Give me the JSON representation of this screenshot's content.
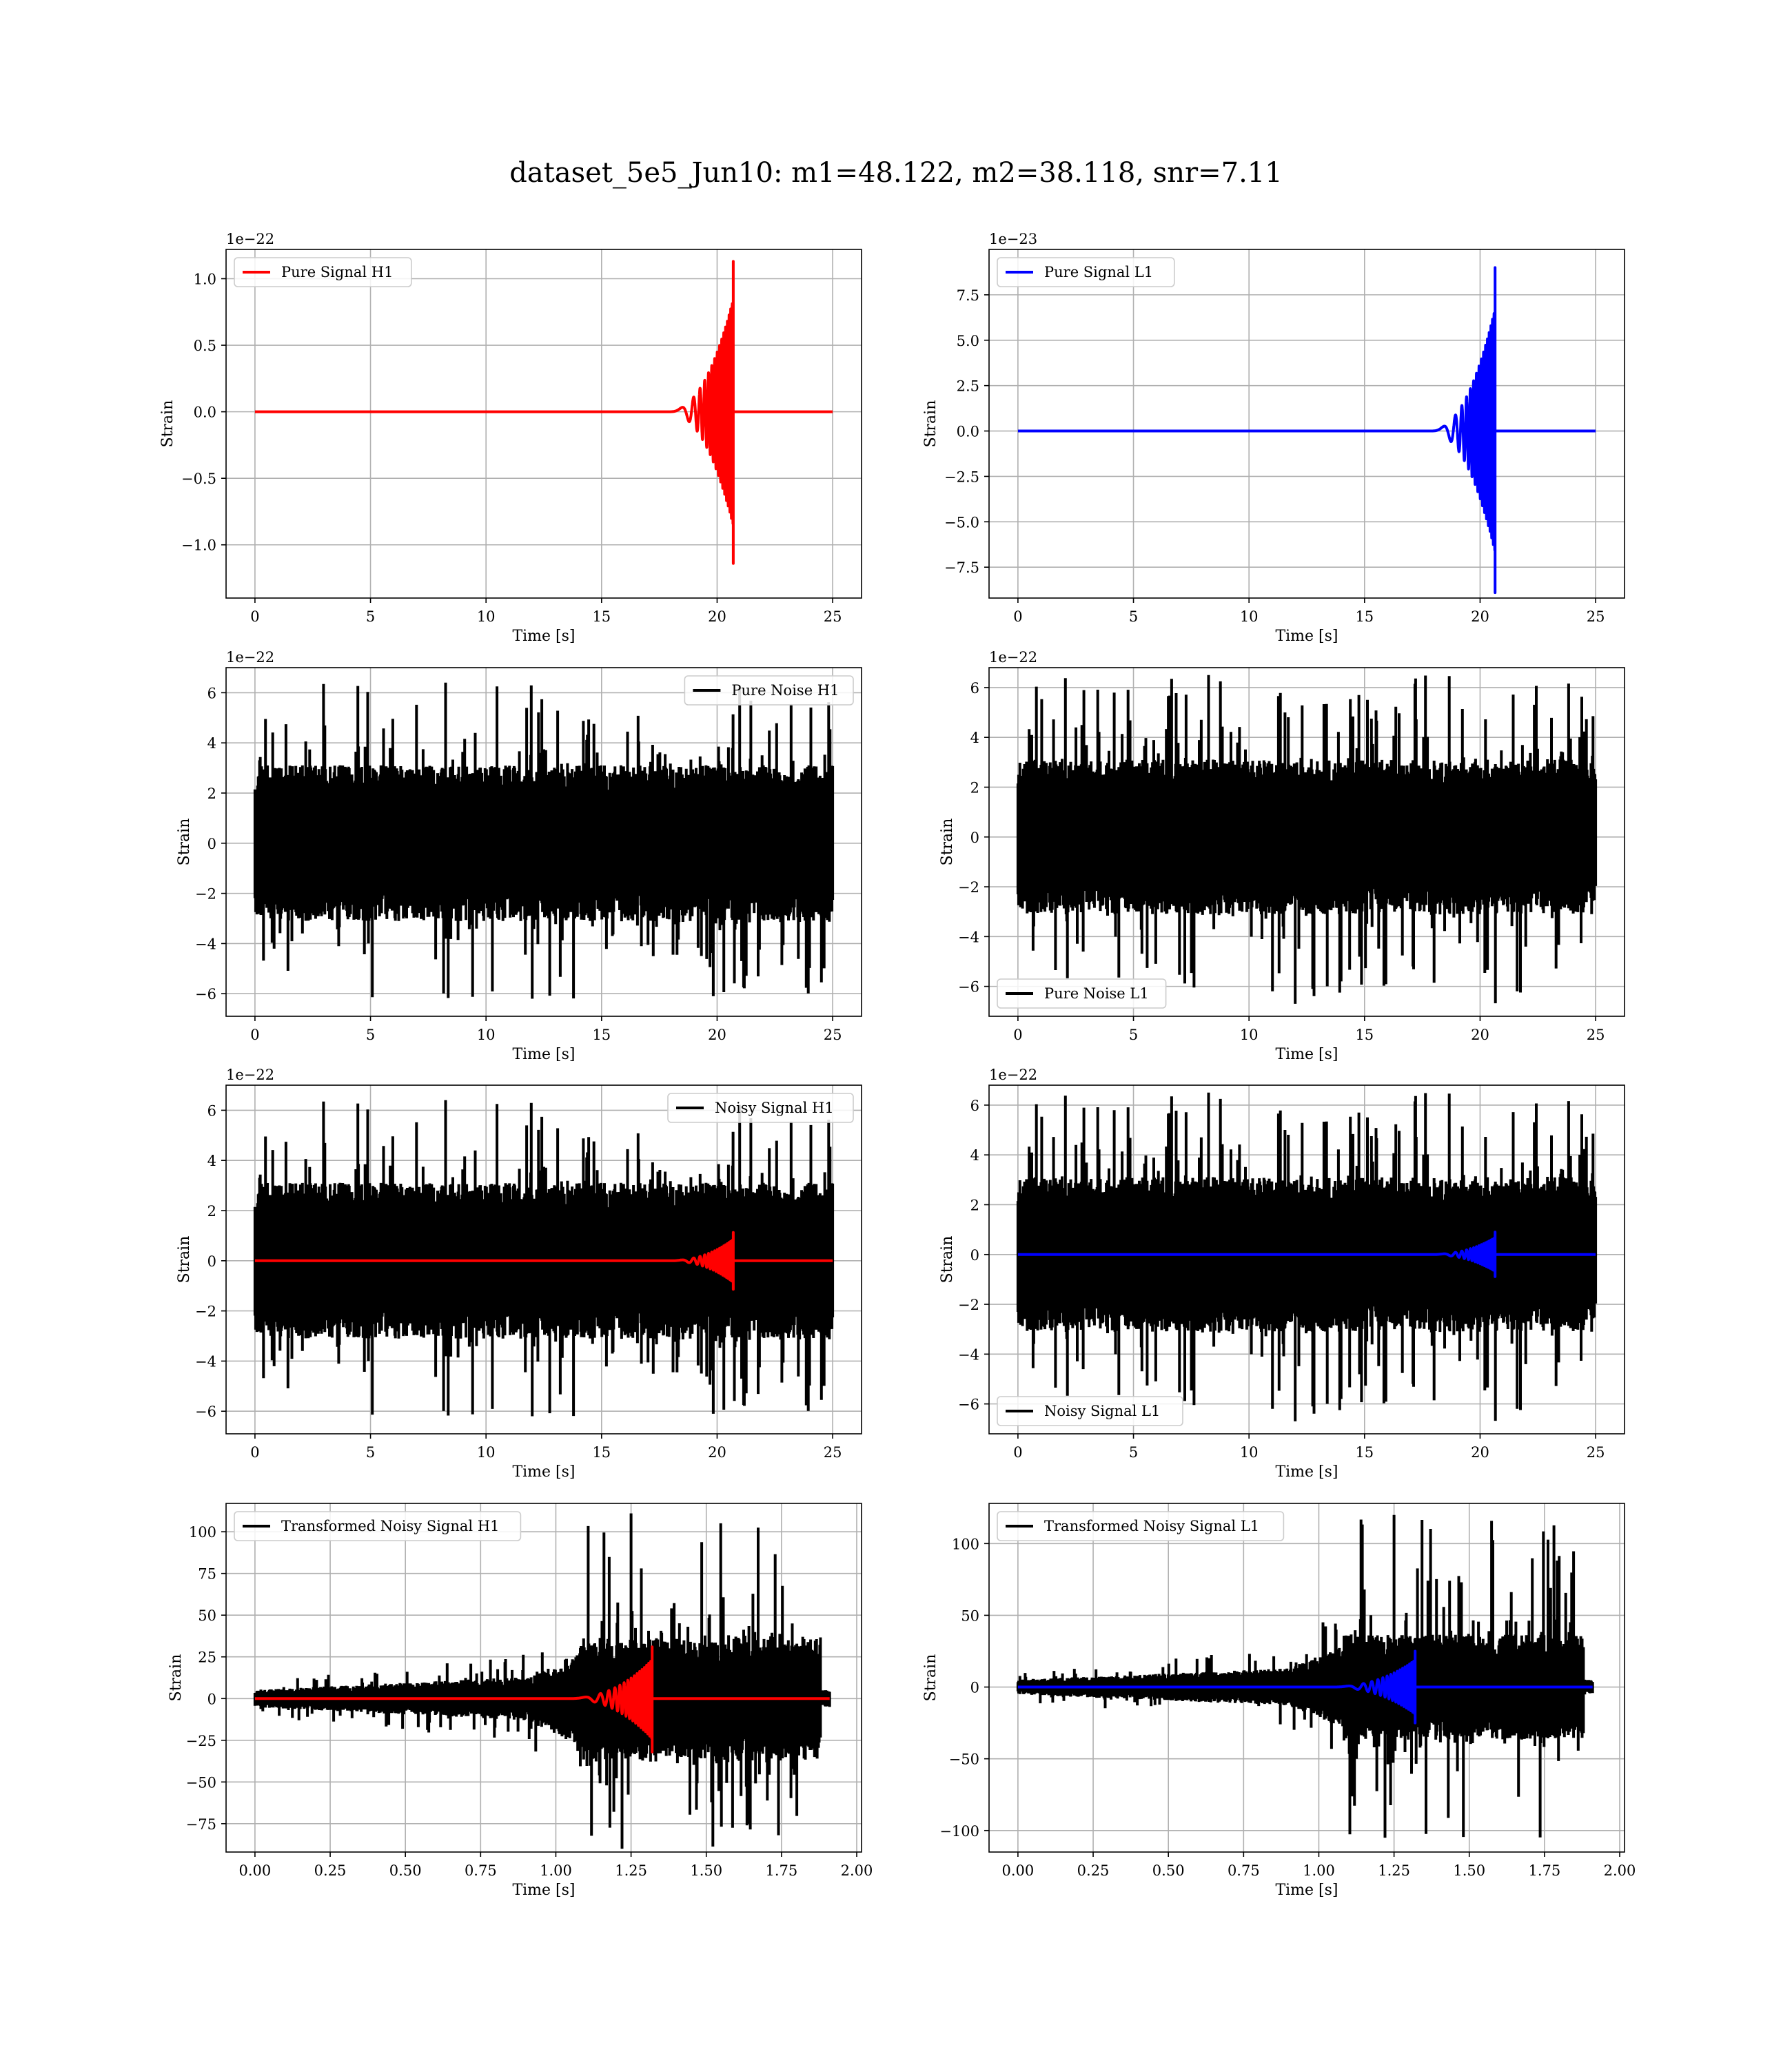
{
  "title": "dataset_5e5_Jun10: m1=48.122, m2=38.118, snr=7.11",
  "colors": {
    "h1_signal": "#ff0000",
    "l1_signal": "#0000ff",
    "noise": "#000000",
    "grid": "#b0b0b0"
  },
  "chart_data": [
    {
      "id": "pure-signal-h1",
      "type": "line",
      "xlabel": "Time [s]",
      "ylabel": "Strain",
      "offset_text": "1e−22",
      "xlim": [
        -1.25,
        26.25
      ],
      "ylim": [
        -1.4,
        1.22
      ],
      "xticks": [
        0,
        5,
        10,
        15,
        20,
        25
      ],
      "xtick_labels": [
        "0",
        "5",
        "10",
        "15",
        "20",
        "25"
      ],
      "yticks": [
        -1.0,
        -0.5,
        0.0,
        0.5,
        1.0
      ],
      "ytick_labels": [
        "−1.0",
        "−0.5",
        "0.0",
        "0.5",
        "1.0"
      ],
      "legend": {
        "label": "Pure Signal H1",
        "color": "#ff0000",
        "position": "upper left"
      },
      "series": [
        {
          "name": "Pure Signal H1",
          "color": "#ff0000",
          "kind": "chirp",
          "x_start": 0,
          "x_end": 25,
          "merger": 20.7,
          "peak": 1.13,
          "trough": -1.14,
          "duration": 3.0,
          "post_amp": 0.0
        }
      ]
    },
    {
      "id": "pure-signal-l1",
      "type": "line",
      "xlabel": "Time [s]",
      "ylabel": "Strain",
      "offset_text": "1e−23",
      "xlim": [
        -1.25,
        26.25
      ],
      "ylim": [
        -9.2,
        10.0
      ],
      "xticks": [
        0,
        5,
        10,
        15,
        20,
        25
      ],
      "xtick_labels": [
        "0",
        "5",
        "10",
        "15",
        "20",
        "25"
      ],
      "yticks": [
        -7.5,
        -5.0,
        -2.5,
        0.0,
        2.5,
        5.0,
        7.5
      ],
      "ytick_labels": [
        "−7.5",
        "−5.0",
        "−2.5",
        "0.0",
        "2.5",
        "5.0",
        "7.5"
      ],
      "legend": {
        "label": "Pure Signal L1",
        "color": "#0000ff",
        "position": "upper left"
      },
      "series": [
        {
          "name": "Pure Signal L1",
          "color": "#0000ff",
          "kind": "chirp",
          "x_start": 0,
          "x_end": 25,
          "merger": 20.65,
          "peak": 9.0,
          "trough": -8.9,
          "duration": 3.0,
          "post_amp": 0.0
        }
      ]
    },
    {
      "id": "pure-noise-h1",
      "type": "line",
      "xlabel": "Time [s]",
      "ylabel": "Strain",
      "offset_text": "1e−22",
      "xlim": [
        -1.25,
        26.25
      ],
      "ylim": [
        -6.9,
        7.0
      ],
      "xticks": [
        0,
        5,
        10,
        15,
        20,
        25
      ],
      "xtick_labels": [
        "0",
        "5",
        "10",
        "15",
        "20",
        "25"
      ],
      "yticks": [
        -6,
        -4,
        -2,
        0,
        2,
        4,
        6
      ],
      "ytick_labels": [
        "−6",
        "−4",
        "−2",
        "0",
        "2",
        "4",
        "6"
      ],
      "legend": {
        "label": "Pure Noise H1",
        "color": "#000000",
        "position": "upper right"
      },
      "series": [
        {
          "name": "Pure Noise H1",
          "color": "#000000",
          "kind": "noise",
          "x_start": 0,
          "x_end": 25,
          "core": 2.3,
          "max": 6.4,
          "min": -6.2,
          "seed": 11
        }
      ]
    },
    {
      "id": "pure-noise-l1",
      "type": "line",
      "xlabel": "Time [s]",
      "ylabel": "Strain",
      "offset_text": "1e−22",
      "xlim": [
        -1.25,
        26.25
      ],
      "ylim": [
        -7.2,
        6.8
      ],
      "xticks": [
        0,
        5,
        10,
        15,
        20,
        25
      ],
      "xtick_labels": [
        "0",
        "5",
        "10",
        "15",
        "20",
        "25"
      ],
      "yticks": [
        -6,
        -4,
        -2,
        0,
        2,
        4,
        6
      ],
      "ytick_labels": [
        "−6",
        "−4",
        "−2",
        "0",
        "2",
        "4",
        "6"
      ],
      "legend": {
        "label": "Pure Noise L1",
        "color": "#000000",
        "position": "lower left"
      },
      "series": [
        {
          "name": "Pure Noise L1",
          "color": "#000000",
          "kind": "noise",
          "x_start": 0,
          "x_end": 25,
          "core": 2.3,
          "max": 6.5,
          "min": -6.7,
          "seed": 23
        }
      ]
    },
    {
      "id": "noisy-signal-h1",
      "type": "line",
      "xlabel": "Time [s]",
      "ylabel": "Strain",
      "offset_text": "1e−22",
      "xlim": [
        -1.25,
        26.25
      ],
      "ylim": [
        -6.9,
        7.0
      ],
      "xticks": [
        0,
        5,
        10,
        15,
        20,
        25
      ],
      "xtick_labels": [
        "0",
        "5",
        "10",
        "15",
        "20",
        "25"
      ],
      "yticks": [
        -6,
        -4,
        -2,
        0,
        2,
        4,
        6
      ],
      "ytick_labels": [
        "−6",
        "−4",
        "−2",
        "0",
        "2",
        "4",
        "6"
      ],
      "legend": {
        "label": "Noisy Signal H1",
        "color": "#000000",
        "position": "upper right"
      },
      "series": [
        {
          "name": "Noisy Signal H1",
          "color": "#000000",
          "kind": "noise",
          "x_start": 0,
          "x_end": 25,
          "core": 2.3,
          "max": 6.4,
          "min": -6.2,
          "seed": 11
        },
        {
          "color": "#ff0000",
          "kind": "chirp",
          "x_start": 0,
          "x_end": 25,
          "merger": 20.7,
          "peak": 1.13,
          "trough": -1.14,
          "duration": 3.0,
          "post_amp": 0.0
        }
      ]
    },
    {
      "id": "noisy-signal-l1",
      "type": "line",
      "xlabel": "Time [s]",
      "ylabel": "Strain",
      "offset_text": "1e−22",
      "xlim": [
        -1.25,
        26.25
      ],
      "ylim": [
        -7.2,
        6.8
      ],
      "xticks": [
        0,
        5,
        10,
        15,
        20,
        25
      ],
      "xtick_labels": [
        "0",
        "5",
        "10",
        "15",
        "20",
        "25"
      ],
      "yticks": [
        -6,
        -4,
        -2,
        0,
        2,
        4,
        6
      ],
      "ytick_labels": [
        "−6",
        "−4",
        "−2",
        "0",
        "2",
        "4",
        "6"
      ],
      "legend": {
        "label": "Noisy Signal L1",
        "color": "#000000",
        "position": "lower left"
      },
      "series": [
        {
          "name": "Noisy Signal L1",
          "color": "#000000",
          "kind": "noise",
          "x_start": 0,
          "x_end": 25,
          "core": 2.3,
          "max": 6.5,
          "min": -6.7,
          "seed": 23
        },
        {
          "color": "#0000ff",
          "kind": "chirp",
          "x_start": 0,
          "x_end": 25,
          "merger": 20.65,
          "peak": 0.9,
          "trough": -0.89,
          "duration": 3.0,
          "post_amp": 0.0
        }
      ]
    },
    {
      "id": "transformed-noisy-signal-h1",
      "type": "line",
      "xlabel": "Time [s]",
      "ylabel": "Strain",
      "offset_text": "",
      "xlim": [
        -0.096,
        2.016
      ],
      "ylim": [
        -92,
        117
      ],
      "xticks": [
        0,
        0.25,
        0.5,
        0.75,
        1.0,
        1.25,
        1.5,
        1.75,
        2.0
      ],
      "xtick_labels": [
        "0.00",
        "0.25",
        "0.50",
        "0.75",
        "1.00",
        "1.25",
        "1.50",
        "1.75",
        "2.00"
      ],
      "yticks": [
        -75,
        -50,
        -25,
        0,
        25,
        50,
        75,
        100
      ],
      "ytick_labels": [
        "−75",
        "−50",
        "−25",
        "0",
        "25",
        "50",
        "75",
        "100"
      ],
      "legend": {
        "label": "Transformed Noisy Signal H1",
        "color": "#000000",
        "position": "upper left"
      },
      "series": [
        {
          "name": "Transformed Noisy Signal H1",
          "color": "#000000",
          "kind": "whitened",
          "x_start": 0,
          "x_end": 1.91,
          "cut": 1.88,
          "max": 111,
          "min": -90,
          "seed": 37
        },
        {
          "color": "#ff0000",
          "kind": "chirp",
          "x_start": 0,
          "x_end": 1.91,
          "merger": 1.32,
          "peak": 31,
          "trough": -32,
          "duration": 0.3,
          "post_amp": 0.0
        }
      ]
    },
    {
      "id": "transformed-noisy-signal-l1",
      "type": "line",
      "xlabel": "Time [s]",
      "ylabel": "Strain",
      "offset_text": "",
      "xlim": [
        -0.096,
        2.016
      ],
      "ylim": [
        -115,
        128
      ],
      "xticks": [
        0,
        0.25,
        0.5,
        0.75,
        1.0,
        1.25,
        1.5,
        1.75,
        2.0
      ],
      "xtick_labels": [
        "0.00",
        "0.25",
        "0.50",
        "0.75",
        "1.00",
        "1.25",
        "1.50",
        "1.75",
        "2.00"
      ],
      "yticks": [
        -100,
        -50,
        0,
        50,
        100
      ],
      "ytick_labels": [
        "−100",
        "−50",
        "0",
        "50",
        "100"
      ],
      "legend": {
        "label": "Transformed Noisy Signal L1",
        "color": "#000000",
        "position": "upper left"
      },
      "series": [
        {
          "name": "Transformed Noisy Signal L1",
          "color": "#000000",
          "kind": "whitened",
          "x_start": 0,
          "x_end": 1.91,
          "cut": 1.88,
          "max": 120,
          "min": -105,
          "seed": 53
        },
        {
          "color": "#0000ff",
          "kind": "chirp",
          "x_start": 0,
          "x_end": 1.91,
          "merger": 1.32,
          "peak": 25,
          "trough": -25,
          "duration": 0.3,
          "post_amp": 0.0
        }
      ]
    }
  ]
}
